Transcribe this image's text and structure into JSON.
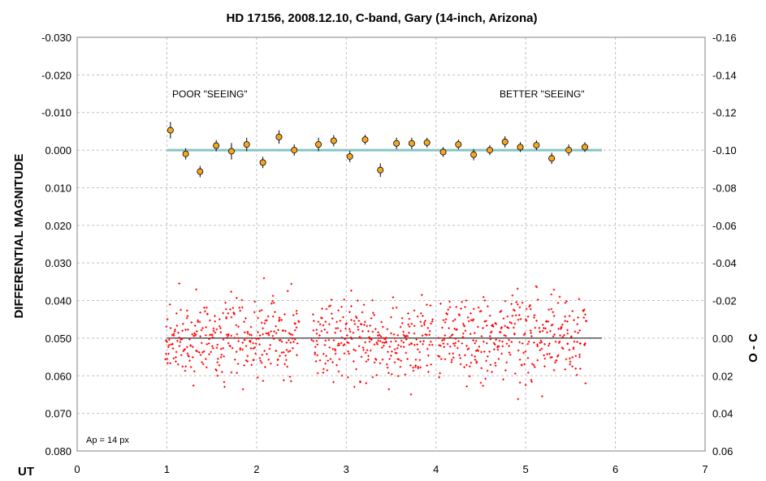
{
  "chart_data": {
    "type": "scatter",
    "title": "HD 17156, 2008.12.10, C-band, Gary (14-inch, Arizona)",
    "xlabel": "UT",
    "ylabel": "DIFFERENTIAL MAGNITUDE",
    "y2label": "O - C",
    "xlim": [
      0,
      7
    ],
    "ylim": [
      -0.03,
      0.08
    ],
    "y_reversed": true,
    "y2lim": [
      -0.16,
      0.06
    ],
    "y2_reversed": true,
    "grid": true,
    "x_ticks": [
      "0",
      "1",
      "2",
      "3",
      "4",
      "5",
      "6",
      "7"
    ],
    "y_ticks": [
      "-0.030",
      "-0.020",
      "-0.010",
      "0.000",
      "0.010",
      "0.020",
      "0.030",
      "0.040",
      "0.050",
      "0.060",
      "0.070",
      "0.080"
    ],
    "y2_ticks": [
      "-0.16",
      "-0.14",
      "-0.12",
      "-0.10",
      "-0.08",
      "-0.06",
      "-0.04",
      "-0.02",
      "0.00",
      "0.02",
      "0.04",
      "0.06"
    ],
    "annotations": {
      "poor_seeing": "POOR \"SEEING\"",
      "better_seeing": "BETTER \"SEEING\"",
      "aperture": "Ap = 14 px"
    },
    "model_line": {
      "x": [
        1.0,
        5.85
      ],
      "y": 0.0,
      "color": "#87C4C4"
    },
    "residual_zero_line": {
      "x": [
        1.0,
        5.85
      ],
      "y": 0.05,
      "color": "#000000"
    },
    "binned_series": {
      "marker_color": "#F5A623",
      "x": [
        1.04,
        1.21,
        1.37,
        1.55,
        1.72,
        1.89,
        2.07,
        2.25,
        2.42,
        2.69,
        2.86,
        3.04,
        3.21,
        3.38,
        3.56,
        3.73,
        3.9,
        4.08,
        4.25,
        4.42,
        4.6,
        4.77,
        4.94,
        5.12,
        5.29,
        5.48,
        5.66
      ],
      "y": [
        -0.0053,
        0.001,
        0.0057,
        -0.0012,
        0.0003,
        -0.0015,
        0.0033,
        -0.0035,
        0.0,
        -0.0015,
        -0.0025,
        0.0017,
        -0.0028,
        0.0053,
        -0.0018,
        -0.0018,
        -0.002,
        0.0005,
        -0.0015,
        0.0012,
        0.0,
        -0.0022,
        -0.0008,
        -0.0013,
        0.0022,
        0.0,
        -0.0008
      ],
      "err": [
        0.0022,
        0.0015,
        0.0015,
        0.0015,
        0.0022,
        0.0018,
        0.0015,
        0.0018,
        0.0015,
        0.0018,
        0.0015,
        0.0015,
        0.0013,
        0.0018,
        0.0015,
        0.0015,
        0.0013,
        0.0013,
        0.0013,
        0.0015,
        0.0013,
        0.0015,
        0.0013,
        0.0013,
        0.0015,
        0.0015,
        0.0013
      ]
    },
    "raw_series": {
      "marker_color": "#FF0000",
      "x_start": 0.98,
      "x_end": 5.68,
      "count": 980,
      "center": 0.05,
      "gaps": [
        [
          2.47,
          2.62
        ],
        [
          3.97,
          4.02
        ],
        [
          5.62,
          5.63
        ]
      ]
    }
  }
}
